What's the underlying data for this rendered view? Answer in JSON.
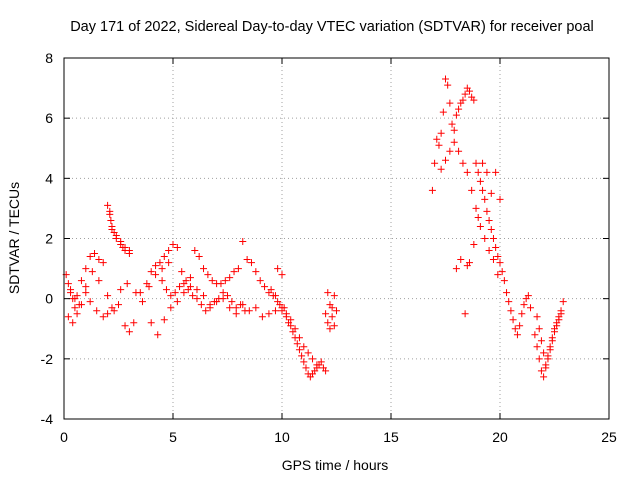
{
  "chart_data": {
    "type": "scatter",
    "title": "Day 171 of 2022, Sidereal Day-to-day VTEC variation (SDTVAR) for receiver poal",
    "xlabel": "GPS time / hours",
    "ylabel": "SDTVAR / TECUs",
    "xlim": [
      0,
      25
    ],
    "ylim": [
      -4,
      8
    ],
    "xticks": [
      0,
      5,
      10,
      15,
      20,
      25
    ],
    "yticks": [
      -4,
      -2,
      0,
      2,
      4,
      6,
      8
    ],
    "grid": true,
    "marker": "plus",
    "color": "#ff0000",
    "series": [
      {
        "name": "SDTVAR",
        "x": [
          0.1,
          0.2,
          0.3,
          0.4,
          0.5,
          0.6,
          0.8,
          1.0,
          1.2,
          1.4,
          1.6,
          1.8,
          2.0,
          2.1,
          2.2,
          2.4,
          2.6,
          2.7,
          2.8,
          3.0,
          0.2,
          0.4,
          0.6,
          0.8,
          1.0,
          1.2,
          1.5,
          1.8,
          2.0,
          2.2,
          2.5,
          2.8,
          3.0,
          3.2,
          0.3,
          0.5,
          0.7,
          1.0,
          1.3,
          1.6,
          2.0,
          2.3,
          2.6,
          2.9,
          3.3,
          3.6,
          3.9,
          4.2,
          4.5,
          4.8,
          2.1,
          2.15,
          2.2,
          2.3,
          2.4,
          2.6,
          2.8,
          3.0,
          3.5,
          3.8,
          4.0,
          4.2,
          4.4,
          4.6,
          4.8,
          5.0,
          5.2,
          5.4,
          5.6,
          5.8,
          6.0,
          6.2,
          6.4,
          6.6,
          6.8,
          7.0,
          7.2,
          7.4,
          7.6,
          7.8,
          8.0,
          8.2,
          8.4,
          8.6,
          8.8,
          9.0,
          9.2,
          9.4,
          9.6,
          9.8,
          10.0,
          4.0,
          4.3,
          4.6,
          4.9,
          5.2,
          5.5,
          5.8,
          6.1,
          6.4,
          6.7,
          7.0,
          7.3,
          7.6,
          7.9,
          8.2,
          8.5,
          8.8,
          9.1,
          9.4,
          9.7,
          4.5,
          4.7,
          4.9,
          5.1,
          5.3,
          5.5,
          5.7,
          5.9,
          6.1,
          6.3,
          6.5,
          6.7,
          6.9,
          7.1,
          7.3,
          7.5,
          7.7,
          7.9,
          8.1,
          8.3,
          9.5,
          9.7,
          9.9,
          10.0,
          10.1,
          10.2,
          10.3,
          10.4,
          10.5,
          10.6,
          10.7,
          10.8,
          10.9,
          11.0,
          11.1,
          11.2,
          11.3,
          11.4,
          11.5,
          11.6,
          11.7,
          11.8,
          11.9,
          12.0,
          9.8,
          10.0,
          10.2,
          10.4,
          10.6,
          10.8,
          11.0,
          11.2,
          11.4,
          11.6,
          12.0,
          12.1,
          12.2,
          12.3,
          12.4,
          12.1,
          12.2,
          12.3,
          12.4,
          12.5,
          16.9,
          17.0,
          17.1,
          17.2,
          17.3,
          17.4,
          17.5,
          17.6,
          17.7,
          17.8,
          17.9,
          18.0,
          18.1,
          18.2,
          18.3,
          18.4,
          18.5,
          18.6,
          18.7,
          18.8,
          18.9,
          19.0,
          19.1,
          19.2,
          19.3,
          19.4,
          19.5,
          19.6,
          19.7,
          19.8,
          19.9,
          20.0,
          20.1,
          20.2,
          20.3,
          20.4,
          20.5,
          20.6,
          20.7,
          20.8,
          20.9,
          21.0,
          21.1,
          21.2,
          21.3,
          21.4,
          17.3,
          17.5,
          17.7,
          17.9,
          18.1,
          18.3,
          18.5,
          18.7,
          18.9,
          19.1,
          19.3,
          19.5,
          19.7,
          19.9,
          18.0,
          18.2,
          18.4,
          18.5,
          18.6,
          18.8,
          19.0,
          19.2,
          19.4,
          19.6,
          19.8,
          20.0,
          21.6,
          21.7,
          21.8,
          21.9,
          22.0,
          22.1,
          22.2,
          22.3,
          22.4,
          22.5,
          22.6,
          22.7,
          22.8,
          22.9,
          21.7,
          21.8,
          21.9,
          22.0,
          22.1,
          22.2,
          22.3,
          22.4,
          22.5,
          22.6,
          22.7,
          22.8
        ],
        "y": [
          0.8,
          0.5,
          0.2,
          0.0,
          -0.3,
          0.1,
          0.6,
          1.0,
          1.4,
          1.5,
          1.3,
          1.2,
          3.1,
          2.8,
          2.3,
          2.1,
          1.8,
          1.7,
          1.6,
          1.5,
          -0.6,
          -0.8,
          -0.5,
          -0.2,
          0.2,
          -0.1,
          -0.4,
          -0.6,
          -0.5,
          -0.3,
          -0.2,
          -0.9,
          -1.1,
          -0.8,
          0.3,
          0.0,
          -0.2,
          0.4,
          0.9,
          0.6,
          0.1,
          -0.4,
          0.3,
          0.5,
          0.2,
          -0.1,
          0.4,
          0.8,
          1.0,
          1.2,
          2.9,
          2.6,
          2.4,
          2.2,
          2.0,
          1.9,
          1.7,
          1.6,
          0.2,
          0.5,
          0.9,
          1.1,
          1.2,
          1.4,
          1.6,
          1.8,
          1.7,
          0.9,
          0.6,
          0.7,
          1.6,
          1.4,
          1.0,
          0.8,
          0.6,
          0.5,
          0.5,
          0.6,
          0.7,
          0.9,
          1.0,
          1.9,
          1.3,
          1.2,
          0.9,
          0.6,
          0.4,
          0.2,
          0.1,
          1.0,
          0.8,
          -0.8,
          -1.2,
          -0.7,
          -0.3,
          -0.1,
          0.2,
          0.4,
          0.3,
          0.1,
          -0.2,
          -0.1,
          0.0,
          -0.3,
          -0.5,
          -0.2,
          -0.4,
          -0.3,
          -0.6,
          -0.5,
          -0.4,
          0.6,
          0.3,
          0.1,
          0.2,
          0.4,
          0.5,
          0.3,
          0.1,
          0.0,
          -0.2,
          -0.4,
          -0.3,
          -0.1,
          0.0,
          0.2,
          0.1,
          -0.1,
          -0.3,
          -0.2,
          -0.4,
          0.3,
          0.1,
          -0.2,
          -0.4,
          -0.3,
          -0.6,
          -0.8,
          -0.9,
          -1.1,
          -1.3,
          -1.5,
          -1.7,
          -1.9,
          -2.1,
          -2.3,
          -2.5,
          -2.6,
          -2.5,
          -2.4,
          -2.3,
          -2.2,
          -2.1,
          -2.3,
          -2.4,
          -0.1,
          -0.3,
          -0.5,
          -0.7,
          -1.0,
          -1.3,
          -1.6,
          -1.8,
          -2.0,
          -2.2,
          -0.5,
          -0.8,
          -1.0,
          -0.3,
          0.1,
          0.2,
          -0.2,
          -0.6,
          -0.9,
          -0.4,
          3.6,
          4.5,
          5.3,
          5.1,
          5.5,
          6.2,
          7.3,
          7.1,
          6.5,
          5.8,
          5.6,
          6.1,
          6.3,
          6.5,
          6.6,
          6.8,
          7.0,
          6.9,
          6.7,
          6.6,
          4.5,
          4.2,
          3.9,
          3.6,
          3.3,
          2.9,
          2.6,
          2.3,
          2.0,
          1.7,
          1.4,
          1.2,
          0.9,
          0.6,
          0.2,
          -0.1,
          -0.4,
          -0.7,
          -1.0,
          -1.2,
          -0.9,
          -0.5,
          -0.2,
          0.0,
          0.1,
          -0.3,
          4.3,
          4.6,
          4.9,
          5.2,
          4.9,
          4.5,
          4.2,
          3.6,
          3.0,
          2.4,
          2.0,
          1.6,
          1.3,
          0.8,
          1.0,
          1.3,
          -0.5,
          1.1,
          1.2,
          1.8,
          2.7,
          4.5,
          4.2,
          3.5,
          4.2,
          3.3,
          -1.2,
          -1.6,
          -2.0,
          -2.4,
          -2.6,
          -2.3,
          -1.9,
          -1.6,
          -1.3,
          -1.0,
          -0.8,
          -0.6,
          -0.4,
          -0.1,
          -0.6,
          -1.0,
          -1.4,
          -1.8,
          -2.2,
          -2.0,
          -1.7,
          -1.4,
          -1.1,
          -0.9,
          -0.7,
          -0.5
        ]
      }
    ]
  }
}
